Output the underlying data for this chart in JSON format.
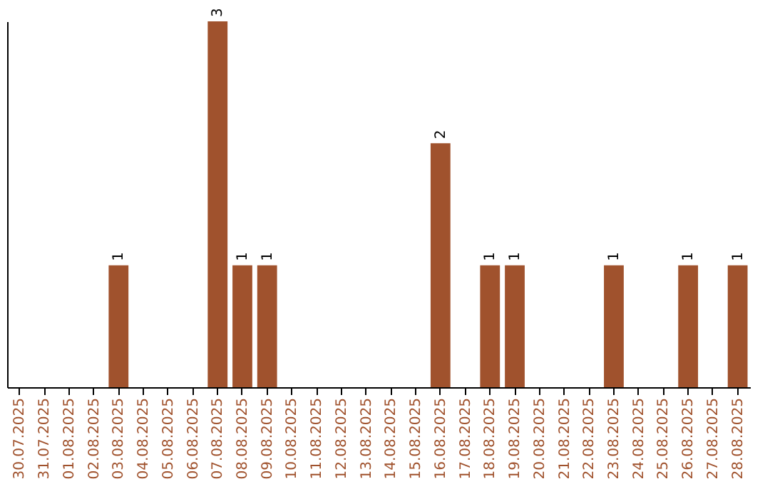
{
  "chart_data": {
    "type": "bar",
    "categories": [
      "30.07.2025",
      "31.07.2025",
      "01.08.2025",
      "02.08.2025",
      "03.08.2025",
      "04.08.2025",
      "05.08.2025",
      "06.08.2025",
      "07.08.2025",
      "08.08.2025",
      "09.08.2025",
      "10.08.2025",
      "11.08.2025",
      "12.08.2025",
      "13.08.2025",
      "14.08.2025",
      "15.08.2025",
      "16.08.2025",
      "17.08.2025",
      "18.08.2025",
      "19.08.2025",
      "20.08.2025",
      "21.08.2025",
      "22.08.2025",
      "23.08.2025",
      "24.08.2025",
      "25.08.2025",
      "26.08.2025",
      "27.08.2025",
      "28.08.2025"
    ],
    "values": [
      0,
      0,
      0,
      0,
      1,
      0,
      0,
      0,
      3,
      1,
      1,
      0,
      0,
      0,
      0,
      0,
      0,
      2,
      0,
      1,
      1,
      0,
      0,
      0,
      1,
      0,
      0,
      1,
      0,
      1
    ],
    "value_labels": [
      null,
      null,
      null,
      null,
      "1",
      null,
      null,
      null,
      "3",
      "1",
      "1",
      null,
      null,
      null,
      null,
      null,
      null,
      "2",
      null,
      "1",
      "1",
      null,
      null,
      null,
      "1",
      null,
      null,
      "1",
      null,
      "1"
    ],
    "color": "#a0522d",
    "tick_labels": "x",
    "grid": false
  }
}
